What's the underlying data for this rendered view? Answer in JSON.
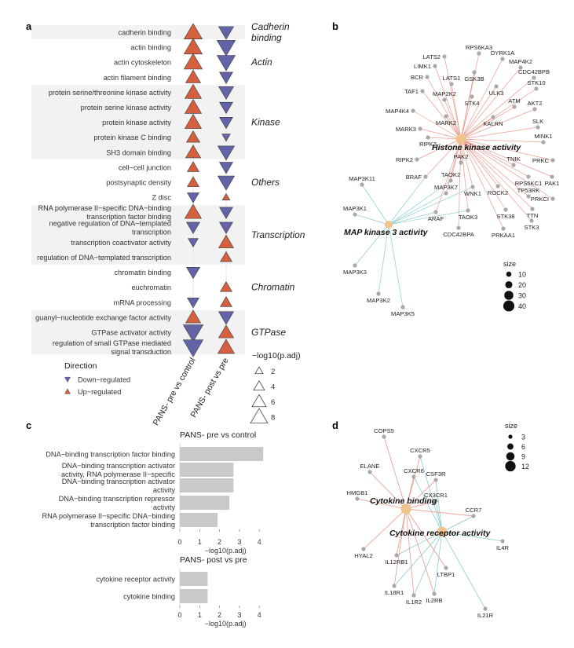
{
  "panel_labels": {
    "a": "a",
    "b": "b",
    "c": "c",
    "d": "d"
  },
  "colors": {
    "up": "#d4603f",
    "down": "#6363a8",
    "bar": "#c9c9c9",
    "band": "#f2f2f2",
    "node": "#a9a9a9",
    "hub": "#f0c48c",
    "edge_hist": "#e88b7d",
    "edge_map": "#7ec8c8",
    "edge_cb": "#e88b7d",
    "edge_cra": "#7ec8c8"
  },
  "chart_data": [
    {
      "panel": "a",
      "type": "scatter",
      "columns": [
        "PANS- pre vs control",
        "PANS- post vs pre"
      ],
      "groups": [
        {
          "name": "Cadherin binding",
          "label_lines": [
            "Cadherin",
            "binding"
          ],
          "terms": [
            "cadherin binding"
          ]
        },
        {
          "name": "Actin",
          "label_lines": [
            "Actin"
          ],
          "terms": [
            "actin binding",
            "actin cytoskeleton",
            "actin filament binding"
          ]
        },
        {
          "name": "Kinase",
          "label_lines": [
            "Kinase"
          ],
          "terms": [
            "protein serine/threonine kinase activity",
            "protein serine kinase activity",
            "protein kinase activity",
            "protein kinase C binding",
            "SH3 domain binding"
          ]
        },
        {
          "name": "Others",
          "label_lines": [
            "Others"
          ],
          "terms": [
            "cell−cell junction",
            "postsynaptic density",
            "Z disc"
          ]
        },
        {
          "name": "Transcription",
          "label_lines": [
            "Transcription"
          ],
          "terms": [
            "RNA polymerase II−specific DNA−binding transcription factor binding",
            "negative regulation of DNA−templated transcription",
            "transcription coactivator activity",
            "regulation of DNA−templated transcription"
          ]
        },
        {
          "name": "Chromatin",
          "label_lines": [
            "Chromatin"
          ],
          "terms": [
            "chromatin binding",
            "euchromatin",
            "mRNA processing"
          ]
        },
        {
          "name": "GTPase",
          "label_lines": [
            "GTPase"
          ],
          "terms": [
            "guanyl−nucleotide exchange factor activity",
            "GTPase activator activity",
            "regulation of small GTPase mediated signal transduction"
          ]
        }
      ],
      "term_label_lines": [
        [
          "cadherin binding"
        ],
        [
          "actin binding"
        ],
        [
          "actin cytoskeleton"
        ],
        [
          "actin filament binding"
        ],
        [
          "protein serine/threonine kinase activity"
        ],
        [
          "protein serine kinase activity"
        ],
        [
          "protein kinase activity"
        ],
        [
          "protein kinase C binding"
        ],
        [
          "SH3 domain binding"
        ],
        [
          "cell−cell junction"
        ],
        [
          "postsynaptic density"
        ],
        [
          "Z disc"
        ],
        [
          "RNA polymerase II−specific DNA−binding",
          "transcription factor binding"
        ],
        [
          "negative regulation of DNA−templated",
          "transcription"
        ],
        [
          "transcription coactivator activity"
        ],
        [
          "regulation of DNA−templated transcription"
        ],
        [
          "chromatin binding"
        ],
        [
          "euchromatin"
        ],
        [
          "mRNA processing"
        ],
        [
          "guanyl−nucleotide exchange factor activity"
        ],
        [
          "GTPase activator activity"
        ],
        [
          "regulation of small GTPase mediated",
          "signal transduction"
        ]
      ],
      "points": [
        [
          {
            "dir": "up",
            "size": 8
          },
          {
            "dir": "down",
            "size": 6
          }
        ],
        [
          {
            "dir": "up",
            "size": 8
          },
          {
            "dir": "down",
            "size": 8
          }
        ],
        [
          {
            "dir": "up",
            "size": 8
          },
          {
            "dir": "down",
            "size": 8
          }
        ],
        [
          {
            "dir": "up",
            "size": 6
          },
          {
            "dir": "down",
            "size": 5
          }
        ],
        [
          {
            "dir": "up",
            "size": 7
          },
          {
            "dir": "down",
            "size": 6
          }
        ],
        [
          {
            "dir": "up",
            "size": 7
          },
          {
            "dir": "down",
            "size": 5
          }
        ],
        [
          {
            "dir": "up",
            "size": 7
          },
          {
            "dir": "down",
            "size": 5
          }
        ],
        [
          {
            "dir": "up",
            "size": 5
          },
          {
            "dir": "down",
            "size": 2
          }
        ],
        [
          {
            "dir": "up",
            "size": 6
          },
          {
            "dir": "down",
            "size": 7
          }
        ],
        [
          {
            "dir": "up",
            "size": 4
          },
          {
            "dir": "down",
            "size": 5
          }
        ],
        [
          {
            "dir": "up",
            "size": 4
          },
          {
            "dir": "down",
            "size": 7
          }
        ],
        [
          {
            "dir": "down",
            "size": 4
          },
          {
            "dir": "up",
            "size": 1.5
          }
        ],
        [
          {
            "dir": "up",
            "size": 7
          },
          {
            "dir": "down",
            "size": 5
          }
        ],
        [
          {
            "dir": "down",
            "size": 5
          },
          {
            "dir": "down",
            "size": 5
          }
        ],
        [
          {
            "dir": "down",
            "size": 3
          },
          {
            "dir": "up",
            "size": 6
          }
        ],
        [
          null,
          {
            "dir": "up",
            "size": 4
          }
        ],
        [
          {
            "dir": "down",
            "size": 5
          },
          null
        ],
        [
          null,
          {
            "dir": "up",
            "size": 4
          }
        ],
        [
          {
            "dir": "down",
            "size": 4
          },
          {
            "dir": "up",
            "size": 4
          }
        ],
        [
          {
            "dir": "up",
            "size": 6
          },
          {
            "dir": "down",
            "size": 6
          }
        ],
        [
          {
            "dir": "down",
            "size": 9
          },
          {
            "dir": "up",
            "size": 6
          }
        ],
        [
          {
            "dir": "down",
            "size": 9
          },
          {
            "dir": "up",
            "size": 7
          }
        ]
      ],
      "legend": {
        "direction_title": "Direction",
        "direction_items": [
          {
            "label": "Down−regulated",
            "dir": "down"
          },
          {
            "label": "Up−regulated",
            "dir": "up"
          }
        ],
        "size_title": "−log10(p.adj)",
        "size_values": [
          2,
          4,
          6,
          8
        ]
      }
    },
    {
      "panel": "c",
      "type": "bar",
      "orientation": "horizontal",
      "subplots": [
        {
          "title": "PANS- pre vs control",
          "categories": [
            "DNA−binding transcription factor binding",
            "DNA−binding transcription activator activity, RNA polymerase II−specific",
            "DNA−binding transcription activator activity",
            "DNA−binding transcription repressor activity",
            "RNA polymerase II−specific DNA−binding transcription factor binding"
          ],
          "category_label_lines": [
            [
              "DNA−binding transcription factor binding"
            ],
            [
              "DNA−binding transcription activator",
              "activity, RNA polymerase II−specific"
            ],
            [
              "DNA−binding transcription activator",
              "activity"
            ],
            [
              "DNA−binding transcription repressor",
              "activity"
            ],
            [
              "RNA polymerase II−specific DNA−binding",
              "transcription factor binding"
            ]
          ],
          "values": [
            4.2,
            2.7,
            2.7,
            2.5,
            1.9
          ],
          "xlim": [
            0,
            4.6
          ],
          "xticks": [
            0,
            1,
            2,
            3,
            4
          ],
          "xlabel": "−log10(p.adj)"
        },
        {
          "title": "PANS- post vs pre",
          "categories": [
            "cytokine receptor activity",
            "cytokine binding"
          ],
          "category_label_lines": [
            [
              "cytokine receptor activity"
            ],
            [
              "cytokine binding"
            ]
          ],
          "values": [
            1.4,
            1.4
          ],
          "xlim": [
            0,
            4.6
          ],
          "xticks": [
            0,
            1,
            2,
            3,
            4
          ],
          "xlabel": "−log10(p.adj)"
        }
      ]
    },
    {
      "panel": "b",
      "type": "network",
      "hubs": [
        "Histone kinase activity",
        "MAP kinase 3 activity"
      ],
      "nodes": [
        "LATS2",
        "RPS6KA3",
        "DYRK1A",
        "LIMK1",
        "MAP4K2",
        "GSK3B",
        "BCR",
        "CDC42BPB",
        "LATS1",
        "ULK3",
        "TAF1",
        "STK10",
        "MAP2K2",
        "STK4",
        "MAP4K4",
        "ATM",
        "AKT2",
        "MARK2",
        "KALRN",
        "MARK3",
        "SLK",
        "RIPK3",
        "MINK1",
        "PRKC",
        "RIPK2",
        "PAK2",
        "TNIK",
        "BRAF",
        "RPS6KC1",
        "PAK1",
        "TAOK2",
        "PRKCI",
        "MAP3K11",
        "WNK1",
        "ROCK2",
        "MAP3K7",
        "TP53RK",
        "TTN",
        "ARAF",
        "TAOK3",
        "STK38",
        "STK3",
        "MAP3K1",
        "CDC42BPA",
        "PRKAA1",
        "MAP3K3",
        "MAP3K2",
        "MAP3K5"
      ],
      "size_legend": {
        "title": "size",
        "values": [
          10,
          20,
          30,
          40
        ]
      }
    },
    {
      "panel": "d",
      "type": "network",
      "hubs": [
        "Cytokine binding",
        "Cytokine receptor activity"
      ],
      "nodes": [
        "COPS5",
        "CXCR5",
        "ELANE",
        "CXCR6",
        "CSF3R",
        "CX3CR1",
        "HMGB1",
        "CCR7",
        "IL4R",
        "HYAL2",
        "IL12RB1",
        "LTBP1",
        "IL18R1",
        "IL1R2",
        "IL2RB",
        "IL21R"
      ],
      "size_legend": {
        "title": "size",
        "values": [
          3,
          6,
          9,
          12
        ]
      }
    }
  ]
}
